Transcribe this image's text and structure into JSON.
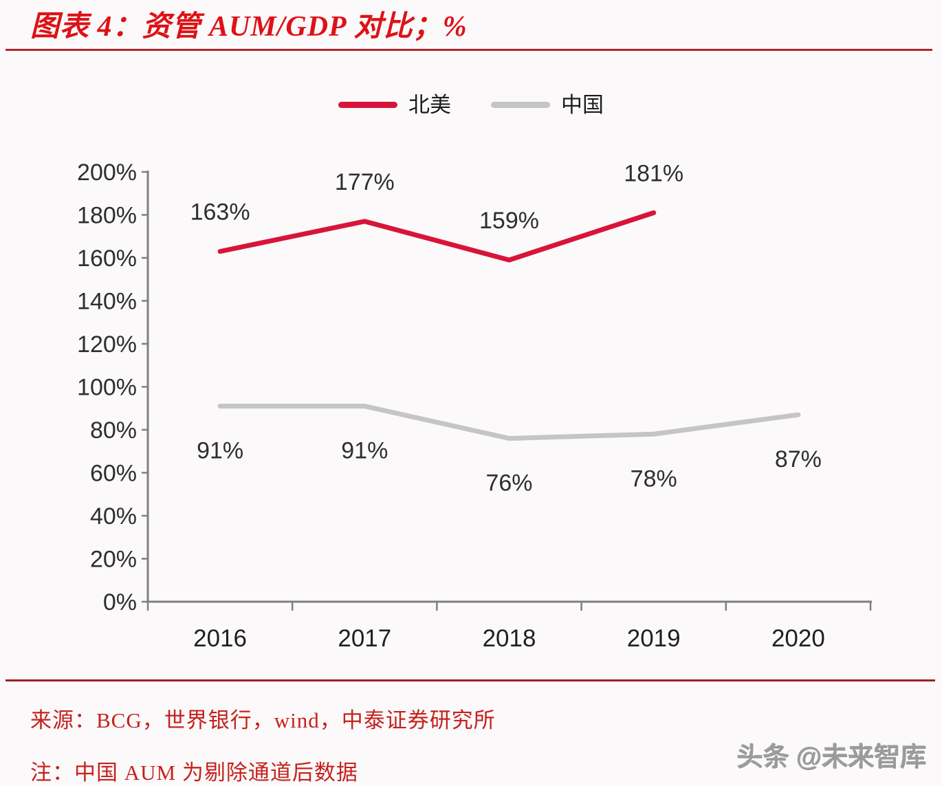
{
  "header": {
    "title": "图表 4：资管 AUM/GDP 对比；%",
    "title_color": "#dd1217",
    "rule_color": "#b0262b"
  },
  "chart_data": {
    "type": "line",
    "title": "资管 AUM/GDP 对比；%",
    "categories": [
      "2016",
      "2017",
      "2018",
      "2019",
      "2020"
    ],
    "series": [
      {
        "name": "北美",
        "color": "#d8143a",
        "values": [
          163,
          177,
          159,
          181,
          null
        ],
        "data_label_position": "above"
      },
      {
        "name": "中国",
        "color": "#c5c4c6",
        "values": [
          91,
          91,
          76,
          78,
          87
        ],
        "data_label_position": "below"
      }
    ],
    "unit": "%",
    "ylim": [
      0,
      200
    ],
    "ytick_step": 20,
    "ytick_suffix": "%",
    "grid": false,
    "legend_position": "top-center",
    "axis_color": "#7f7f7f",
    "tick_label_color": "#2e2e2e",
    "data_label_color": "#2e2e2e",
    "category_label_color": "#1f1f1f"
  },
  "footer": {
    "source": "来源：BCG，世界银行，wind，中泰证券研究所",
    "note": "注：中国 AUM 为剔除通道后数据",
    "text_color": "#c5211e",
    "rule_color": "#9e2127"
  },
  "watermark": {
    "text": "头条 @未来智库"
  }
}
